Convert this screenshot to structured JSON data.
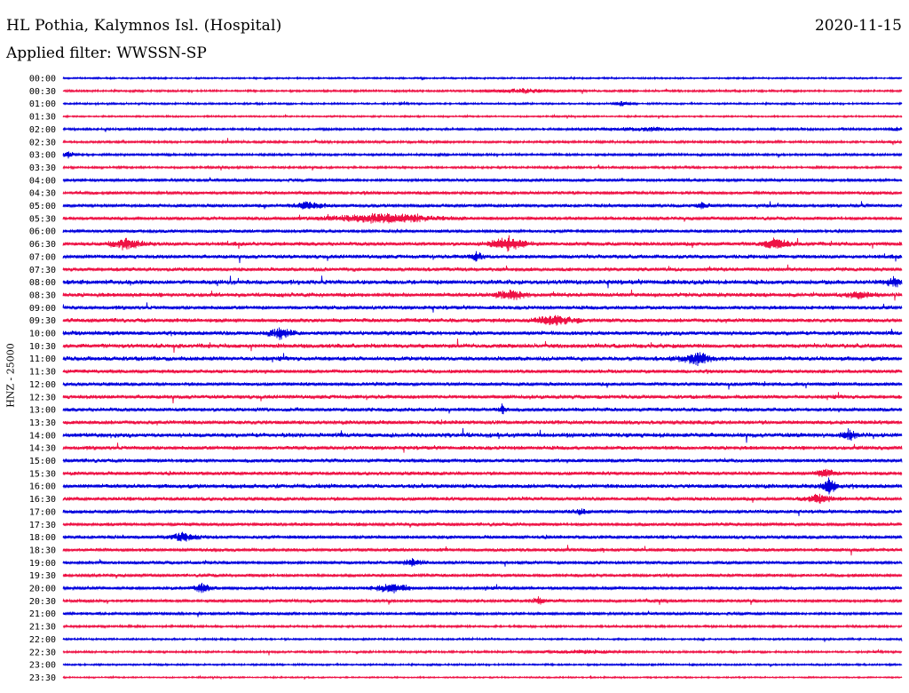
{
  "header": {
    "station_title": "HL Pothia, Kalymnos Isl. (Hospital)",
    "date": "2020-11-15",
    "filter_text": "Applied filter: WWSSN-SP"
  },
  "colors": {
    "even_trace": "#0000dd",
    "odd_trace": "#ee1144",
    "text": "#000000"
  },
  "chart_data": {
    "type": "line",
    "title": "HL Pothia, Kalymnos Isl. (Hospital)",
    "ylabel": "HNZ - 25000",
    "row_labels": [
      "00:00",
      "00:30",
      "01:00",
      "01:30",
      "02:00",
      "02:30",
      "03:00",
      "03:30",
      "04:00",
      "04:30",
      "05:00",
      "05:30",
      "06:00",
      "06:30",
      "07:00",
      "07:30",
      "08:00",
      "08:30",
      "09:00",
      "09:30",
      "10:00",
      "10:30",
      "11:00",
      "11:30",
      "12:00",
      "12:30",
      "13:00",
      "13:30",
      "14:00",
      "14:30",
      "15:00",
      "15:30",
      "16:00",
      "16:30",
      "17:00",
      "17:30",
      "18:00",
      "18:30",
      "19:00",
      "19:30",
      "20:00",
      "20:30",
      "21:00",
      "21:30",
      "22:00",
      "22:30",
      "23:00",
      "23:30"
    ],
    "noise_level": [
      0.15,
      0.25,
      0.2,
      0.15,
      0.3,
      0.35,
      0.35,
      0.3,
      0.5,
      0.55,
      0.6,
      0.6,
      0.55,
      0.75,
      0.75,
      0.75,
      1.0,
      0.85,
      0.75,
      0.8,
      0.85,
      0.9,
      0.9,
      0.7,
      0.65,
      0.75,
      0.75,
      0.8,
      0.95,
      0.75,
      0.7,
      0.7,
      0.85,
      0.7,
      0.65,
      0.6,
      0.65,
      0.6,
      0.55,
      0.55,
      0.55,
      0.5,
      0.45,
      0.3,
      0.2,
      0.25,
      0.2,
      0.1
    ],
    "events": [
      {
        "row": 1,
        "minute": 16.5,
        "amp": 2.5,
        "width": 2.5
      },
      {
        "row": 2,
        "minute": 20,
        "amp": 3,
        "width": 0.6
      },
      {
        "row": 4,
        "minute": 21,
        "amp": 2,
        "width": 4
      },
      {
        "row": 4,
        "minute": 29.8,
        "amp": 4,
        "width": 0.3
      },
      {
        "row": 6,
        "minute": 0.2,
        "amp": 4,
        "width": 0.5
      },
      {
        "row": 10,
        "minute": 8.8,
        "amp": 5,
        "width": 1.2
      },
      {
        "row": 10,
        "minute": 22.9,
        "amp": 5,
        "width": 0.4
      },
      {
        "row": 11,
        "minute": 11.5,
        "amp": 6,
        "width": 4
      },
      {
        "row": 13,
        "minute": 2.3,
        "amp": 7,
        "width": 1.2
      },
      {
        "row": 13,
        "minute": 15.9,
        "amp": 9,
        "width": 1.3
      },
      {
        "row": 13,
        "minute": 25.5,
        "amp": 7,
        "width": 1.0
      },
      {
        "row": 14,
        "minute": 14.8,
        "amp": 6,
        "width": 0.5
      },
      {
        "row": 16,
        "minute": 29.7,
        "amp": 6,
        "width": 0.5
      },
      {
        "row": 17,
        "minute": 16.0,
        "amp": 6,
        "width": 1.0
      },
      {
        "row": 17,
        "minute": 28.5,
        "amp": 5,
        "width": 1.0
      },
      {
        "row": 19,
        "minute": 17.6,
        "amp": 6,
        "width": 1.5
      },
      {
        "row": 20,
        "minute": 7.8,
        "amp": 6,
        "width": 1.0
      },
      {
        "row": 22,
        "minute": 22.7,
        "amp": 7,
        "width": 1.3
      },
      {
        "row": 26,
        "minute": 15.7,
        "amp": 6,
        "width": 0.3
      },
      {
        "row": 28,
        "minute": 28.1,
        "amp": 7,
        "width": 0.6
      },
      {
        "row": 31,
        "minute": 27.3,
        "amp": 5,
        "width": 0.8
      },
      {
        "row": 32,
        "minute": 27.4,
        "amp": 9,
        "width": 0.6
      },
      {
        "row": 33,
        "minute": 27.0,
        "amp": 6,
        "width": 1.0
      },
      {
        "row": 34,
        "minute": 18.5,
        "amp": 4,
        "width": 0.5
      },
      {
        "row": 36,
        "minute": 4.3,
        "amp": 6,
        "width": 1.0
      },
      {
        "row": 38,
        "minute": 12.5,
        "amp": 4,
        "width": 0.8
      },
      {
        "row": 40,
        "minute": 5.0,
        "amp": 6,
        "width": 0.7
      },
      {
        "row": 40,
        "minute": 11.8,
        "amp": 6,
        "width": 1.2
      },
      {
        "row": 41,
        "minute": 17.0,
        "amp": 4,
        "width": 0.6
      },
      {
        "row": 45,
        "minute": 18.5,
        "amp": 2,
        "width": 3.0
      }
    ]
  }
}
